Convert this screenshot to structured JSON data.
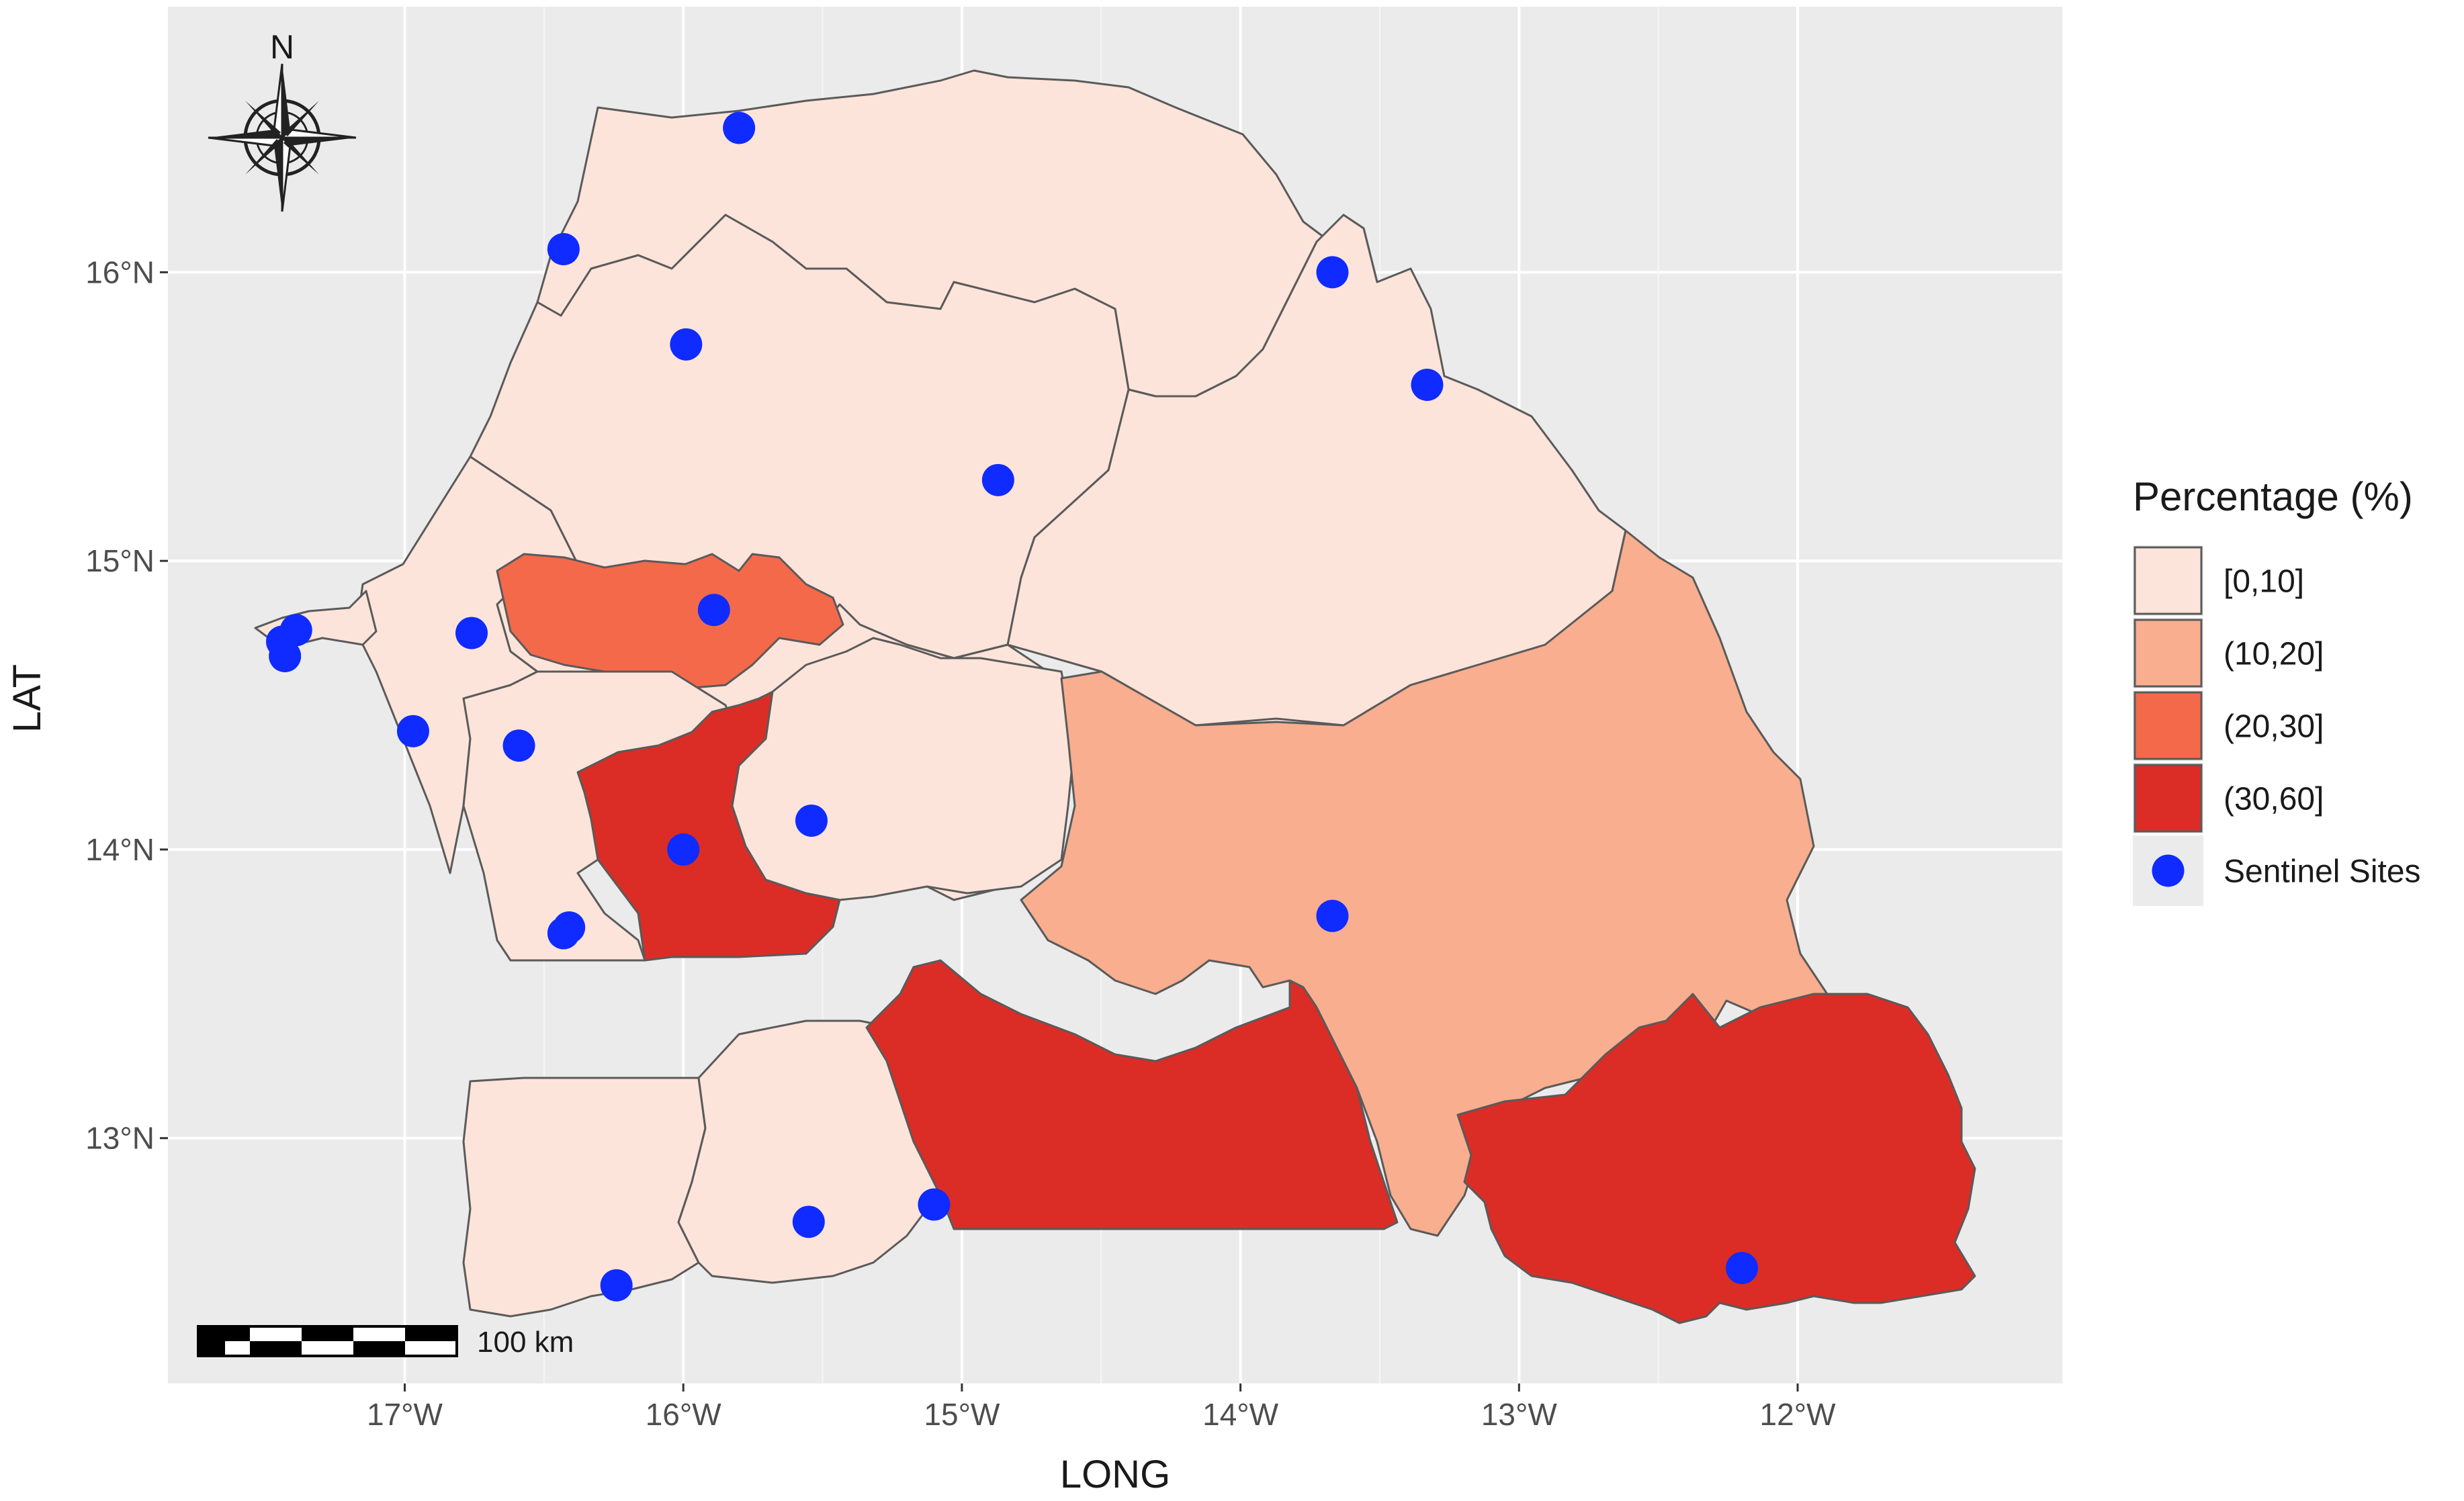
{
  "chart_data": {
    "type": "choropleth-map",
    "xlabel": "LONG",
    "ylabel": "LAT",
    "x_ticks": [
      "17°W",
      "16°W",
      "15°W",
      "14°W",
      "13°W",
      "12°W"
    ],
    "y_ticks": [
      "13°N",
      "14°N",
      "15°N",
      "16°N"
    ],
    "x_tick_values": [
      -17,
      -16,
      -15,
      -14,
      -13,
      -12
    ],
    "y_tick_values": [
      13,
      14,
      15,
      16
    ],
    "xlim": [
      -17.85,
      -11.05
    ],
    "ylim": [
      12.15,
      16.92
    ],
    "legend": {
      "title": "Percentage (%)",
      "placement": "right",
      "classes": [
        {
          "label": "[0,10]",
          "color": "#fde4da"
        },
        {
          "label": "(10,20]",
          "color": "#f8ae8f"
        },
        {
          "label": "(20,30]",
          "color": "#f5694b"
        },
        {
          "label": "(30,60]",
          "color": "#db2d26"
        }
      ],
      "sites_label": "Sentinel Sites",
      "sites_color": "#0f2bff"
    },
    "regions": [
      {
        "class": 0,
        "color": "#fde4da"
      },
      {
        "class": 0,
        "color": "#fde4da"
      },
      {
        "class": 0,
        "color": "#fde4da"
      },
      {
        "class": 0,
        "color": "#fde4da"
      },
      {
        "class": 0,
        "color": "#fde4da"
      },
      {
        "class": 0,
        "color": "#fde4da"
      },
      {
        "class": 2,
        "color": "#f5694b"
      },
      {
        "class": 0,
        "color": "#fde4da"
      },
      {
        "class": 0,
        "color": "#fde4da"
      },
      {
        "class": 3,
        "color": "#db2d26"
      },
      {
        "class": 0,
        "color": "#fde4da"
      },
      {
        "class": 1,
        "color": "#f8ae8f"
      },
      {
        "class": 0,
        "color": "#fde4da"
      },
      {
        "class": 0,
        "color": "#fde4da"
      },
      {
        "class": 3,
        "color": "#db2d26"
      },
      {
        "class": 3,
        "color": "#db2d26"
      }
    ],
    "sites": [
      {
        "lon": -15.8,
        "lat": 16.5
      },
      {
        "lon": -16.43,
        "lat": 16.08
      },
      {
        "lon": -15.99,
        "lat": 15.75
      },
      {
        "lon": -13.67,
        "lat": 16.0
      },
      {
        "lon": -13.33,
        "lat": 15.61
      },
      {
        "lon": -14.87,
        "lat": 15.28
      },
      {
        "lon": -17.39,
        "lat": 14.76
      },
      {
        "lon": -17.44,
        "lat": 14.72
      },
      {
        "lon": -17.43,
        "lat": 14.67
      },
      {
        "lon": -16.76,
        "lat": 14.75
      },
      {
        "lon": -15.89,
        "lat": 14.83
      },
      {
        "lon": -16.97,
        "lat": 14.41
      },
      {
        "lon": -16.59,
        "lat": 14.36
      },
      {
        "lon": -16.0,
        "lat": 14.0
      },
      {
        "lon": -15.54,
        "lat": 14.1
      },
      {
        "lon": -16.41,
        "lat": 13.73
      },
      {
        "lon": -16.43,
        "lat": 13.71
      },
      {
        "lon": -13.67,
        "lat": 13.77
      },
      {
        "lon": -15.55,
        "lat": 12.71
      },
      {
        "lon": -15.1,
        "lat": 12.77
      },
      {
        "lon": -16.24,
        "lat": 12.49
      },
      {
        "lon": -12.2,
        "lat": 12.55
      }
    ],
    "grid": true
  },
  "compass": {
    "label": "N"
  },
  "scale_bar": {
    "label": "100 km"
  }
}
